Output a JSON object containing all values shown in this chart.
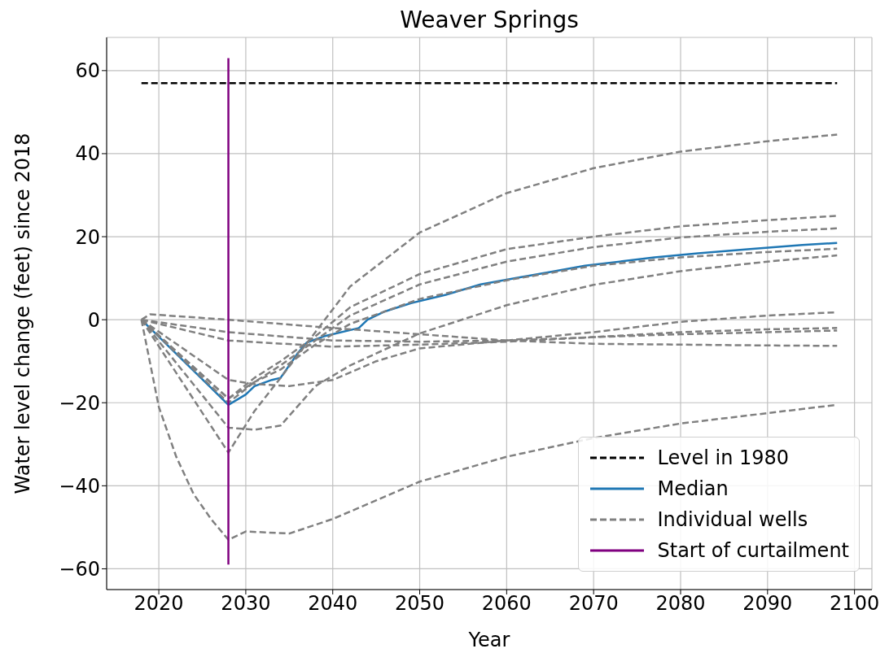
{
  "chart_data": {
    "type": "line",
    "title": "Weaver Springs",
    "xlabel": "Year",
    "ylabel": "Water level change (feet) since 2018",
    "xlim": [
      2014,
      2102
    ],
    "xticks": [
      2020,
      2030,
      2040,
      2050,
      2060,
      2070,
      2080,
      2090,
      2100
    ],
    "ylim": [
      -65,
      68
    ],
    "yticks": [
      -60,
      -40,
      -20,
      0,
      20,
      40,
      60
    ],
    "grid": true,
    "legend": "bottom right",
    "marker": "none",
    "series": [
      {
        "name": "Level in 1980",
        "color": "#000000",
        "line_style": "dashed",
        "x": [
          2018,
          2098
        ],
        "values": [
          57,
          57
        ]
      },
      {
        "name": "Median",
        "color": "#1f77b4",
        "line_style": "solid",
        "x": [
          2018,
          2028,
          2030,
          2031,
          2033,
          2034,
          2036,
          2037,
          2039,
          2043,
          2044,
          2046,
          2049,
          2053,
          2057,
          2061,
          2065,
          2069,
          2073,
          2077,
          2082,
          2088,
          2094,
          2098
        ],
        "values": [
          0,
          -20.5,
          -18,
          -16,
          -14.5,
          -14,
          -8,
          -5.5,
          -4,
          -2,
          0,
          2,
          4,
          6,
          8.5,
          10,
          11.5,
          13,
          14,
          15,
          16,
          17,
          18,
          18.5
        ]
      },
      {
        "name": "Individual wells",
        "color": "#808080",
        "line_style": "dashed",
        "x": [
          2018,
          2028,
          2031,
          2034,
          2038,
          2042,
          2050,
          2060,
          2070,
          2080,
          2090,
          2098
        ],
        "values": [
          0,
          -32,
          -22,
          -14,
          -3,
          8,
          21,
          30.5,
          36.5,
          40.5,
          43,
          44.6
        ]
      },
      {
        "color": "#808080",
        "line_style": "dashed",
        "x": [
          2018,
          2028,
          2031,
          2034,
          2038,
          2042,
          2050,
          2060,
          2070,
          2080,
          2090,
          2098
        ],
        "values": [
          0,
          -19,
          -14,
          -10,
          -4,
          3,
          11,
          17,
          20,
          22.5,
          24,
          25
        ]
      },
      {
        "color": "#808080",
        "line_style": "dashed",
        "x": [
          2018,
          2028,
          2031,
          2034,
          2038,
          2042,
          2050,
          2060,
          2070,
          2080,
          2090,
          2098
        ],
        "values": [
          0,
          -20,
          -15,
          -11,
          -5,
          1,
          8.5,
          14,
          17.5,
          19.8,
          21.2,
          22
        ]
      },
      {
        "color": "#808080",
        "line_style": "dashed",
        "x": [
          2018,
          2028,
          2031,
          2034,
          2038,
          2042,
          2050,
          2060,
          2070,
          2080,
          2090,
          2098
        ],
        "values": [
          0,
          -19,
          -15,
          -12,
          -6,
          -1,
          5,
          9.5,
          13,
          15,
          16.3,
          17.1
        ]
      },
      {
        "color": "#808080",
        "line_style": "dashed",
        "x": [
          2018,
          2028,
          2031,
          2034,
          2038,
          2042,
          2050,
          2060,
          2070,
          2080,
          2090,
          2098
        ],
        "values": [
          0,
          -26,
          -26.5,
          -25.5,
          -16,
          -11,
          -3.3,
          3.5,
          8.4,
          11.7,
          14,
          15.5
        ]
      },
      {
        "color": "#808080",
        "line_style": "dashed",
        "x": [
          2018,
          2028,
          2031,
          2035,
          2040,
          2045,
          2050,
          2060,
          2070,
          2080,
          2090,
          2098
        ],
        "values": [
          0,
          -14.5,
          -15.5,
          -16,
          -14.5,
          -10,
          -6.9,
          -5,
          -3,
          -0.5,
          1,
          1.8
        ]
      },
      {
        "color": "#808080",
        "line_style": "dashed",
        "x": [
          2018,
          2020,
          2022,
          2024,
          2026,
          2028,
          2030,
          2035,
          2040,
          2050,
          2060,
          2070,
          2080,
          2090,
          2098
        ],
        "values": [
          0,
          -21,
          -33,
          -42,
          -48,
          -53,
          -51,
          -51.5,
          -48,
          -39,
          -33,
          -28.5,
          -25,
          -22.5,
          -20.5
        ]
      },
      {
        "color": "#808080",
        "line_style": "dashed",
        "x": [
          2018,
          2019,
          2028,
          2040,
          2050,
          2060,
          2070,
          2080,
          2090,
          2098
        ],
        "values": [
          0,
          1.3,
          0,
          -2,
          -3.5,
          -5,
          -5.8,
          -6,
          -6.2,
          -6.3
        ]
      },
      {
        "color": "#808080",
        "line_style": "dashed",
        "x": [
          2018,
          2028,
          2040,
          2050,
          2060,
          2070,
          2080,
          2090,
          2098
        ],
        "values": [
          0,
          -5,
          -6.5,
          -6,
          -5.3,
          -4.2,
          -3,
          -2.3,
          -2
        ]
      },
      {
        "color": "#808080",
        "line_style": "dashed",
        "x": [
          2018,
          2028,
          2040,
          2050,
          2060,
          2070,
          2080,
          2090,
          2098
        ],
        "values": [
          0,
          -3,
          -5,
          -5.3,
          -5,
          -4.2,
          -3.5,
          -3,
          -2.6
        ]
      },
      {
        "name": "Start of curtailment",
        "color": "#800080",
        "line_style": "solid",
        "x": [
          2028,
          2028
        ],
        "values": [
          -59,
          63
        ]
      }
    ]
  }
}
